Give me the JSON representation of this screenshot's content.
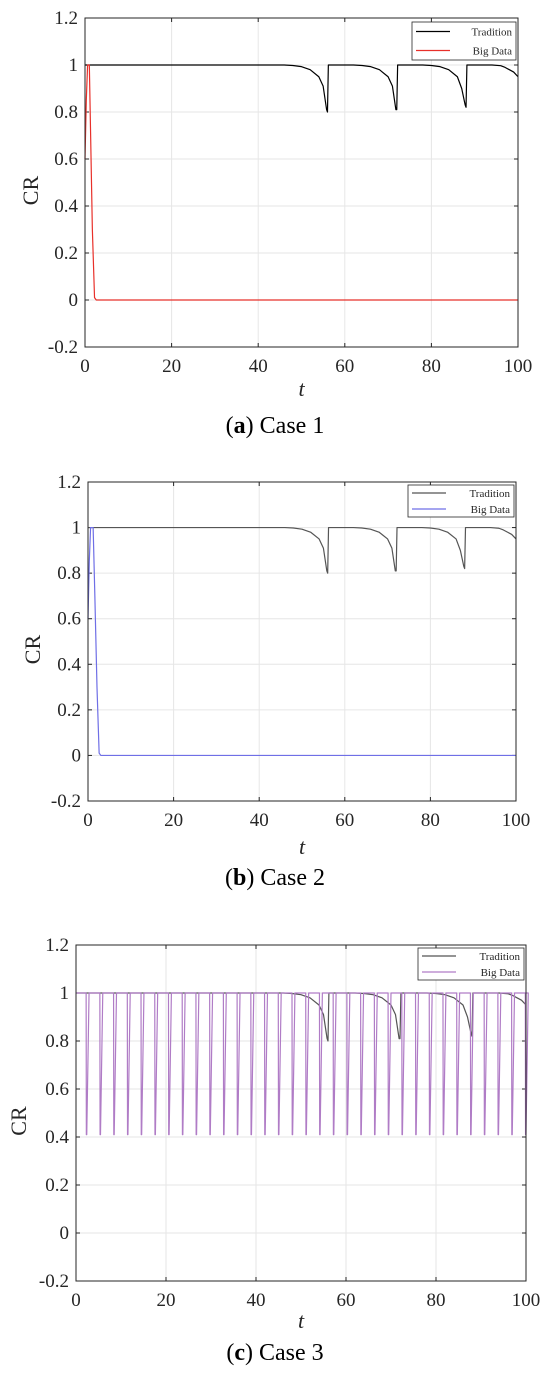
{
  "chart_data": [
    {
      "id": "a",
      "type": "line",
      "caption": {
        "letter": "a",
        "text": "Case 1"
      },
      "xlabel": "t",
      "ylabel": "CR",
      "xlim": [
        0,
        100
      ],
      "ylim": [
        -0.2,
        1.2
      ],
      "xticks": [
        "0",
        "20",
        "40",
        "60",
        "80",
        "100"
      ],
      "yticks": [
        "-0.2",
        "0",
        "0.2",
        "0.4",
        "0.6",
        "0.8",
        "1",
        "1.2"
      ],
      "grid": true,
      "legend_position": "top-right",
      "series": [
        {
          "name": "Tradition",
          "color": "#000000",
          "points": [
            [
              0,
              1
            ],
            [
              46,
              1
            ],
            [
              48,
              0.998
            ],
            [
              50,
              0.993
            ],
            [
              52,
              0.98
            ],
            [
              54,
              0.95
            ],
            [
              55,
              0.91
            ],
            [
              55.8,
              0.81
            ],
            [
              56,
              0.8
            ],
            [
              56.2,
              1
            ],
            [
              62,
              1
            ],
            [
              64,
              0.998
            ],
            [
              66,
              0.993
            ],
            [
              68,
              0.98
            ],
            [
              70,
              0.95
            ],
            [
              71,
              0.91
            ],
            [
              71.8,
              0.81
            ],
            [
              72,
              0.81
            ],
            [
              72.2,
              1
            ],
            [
              78,
              1
            ],
            [
              80,
              0.998
            ],
            [
              82,
              0.993
            ],
            [
              84,
              0.98
            ],
            [
              86,
              0.95
            ],
            [
              87,
              0.9
            ],
            [
              87.8,
              0.83
            ],
            [
              88,
              0.82
            ],
            [
              88.2,
              1
            ],
            [
              94,
              1
            ],
            [
              96,
              0.997
            ],
            [
              97,
              0.99
            ],
            [
              98,
              0.98
            ],
            [
              99,
              0.97
            ],
            [
              100,
              0.95
            ]
          ]
        },
        {
          "name": "Big Data",
          "color": "#e8302a",
          "points": [
            [
              0,
              0.6
            ],
            [
              0.3,
              0.85
            ],
            [
              0.6,
              1
            ],
            [
              1,
              1
            ],
            [
              1.3,
              0.7
            ],
            [
              1.7,
              0.3
            ],
            [
              2.2,
              0.01
            ],
            [
              2.6,
              0
            ],
            [
              100,
              0
            ]
          ]
        }
      ]
    },
    {
      "id": "b",
      "type": "line",
      "caption": {
        "letter": "b",
        "text": "Case 2"
      },
      "xlabel": "t",
      "ylabel": "CR",
      "xlim": [
        0,
        100
      ],
      "ylim": [
        -0.2,
        1.2
      ],
      "xticks": [
        "0",
        "20",
        "40",
        "60",
        "80",
        "100"
      ],
      "yticks": [
        "-0.2",
        "0",
        "0.2",
        "0.4",
        "0.6",
        "0.8",
        "1",
        "1.2"
      ],
      "grid": true,
      "legend_position": "top-right",
      "series": [
        {
          "name": "Tradition",
          "color": "#555555",
          "points": [
            [
              0,
              1
            ],
            [
              46,
              1
            ],
            [
              48,
              0.998
            ],
            [
              50,
              0.993
            ],
            [
              52,
              0.98
            ],
            [
              54,
              0.95
            ],
            [
              55,
              0.91
            ],
            [
              55.8,
              0.81
            ],
            [
              56,
              0.8
            ],
            [
              56.2,
              1
            ],
            [
              62,
              1
            ],
            [
              64,
              0.998
            ],
            [
              66,
              0.993
            ],
            [
              68,
              0.98
            ],
            [
              70,
              0.95
            ],
            [
              71,
              0.91
            ],
            [
              71.8,
              0.81
            ],
            [
              72,
              0.81
            ],
            [
              72.2,
              1
            ],
            [
              78,
              1
            ],
            [
              80,
              0.998
            ],
            [
              82,
              0.993
            ],
            [
              84,
              0.98
            ],
            [
              86,
              0.95
            ],
            [
              87,
              0.9
            ],
            [
              87.8,
              0.83
            ],
            [
              88,
              0.82
            ],
            [
              88.2,
              1
            ],
            [
              94,
              1
            ],
            [
              96,
              0.997
            ],
            [
              97,
              0.99
            ],
            [
              98,
              0.98
            ],
            [
              99,
              0.97
            ],
            [
              100,
              0.95
            ]
          ]
        },
        {
          "name": "Big Data",
          "color": "#6f6fe6",
          "points": [
            [
              0,
              0.6
            ],
            [
              0.3,
              0.85
            ],
            [
              0.6,
              1
            ],
            [
              1.2,
              1
            ],
            [
              1.6,
              0.7
            ],
            [
              2.1,
              0.3
            ],
            [
              2.6,
              0.01
            ],
            [
              3,
              0
            ],
            [
              100,
              0
            ]
          ]
        }
      ]
    },
    {
      "id": "c",
      "type": "line",
      "caption": {
        "letter": "c",
        "text": "Case 3"
      },
      "xlabel": "t",
      "ylabel": "CR",
      "xlim": [
        0,
        100
      ],
      "ylim": [
        -0.2,
        1.2
      ],
      "xticks": [
        "0",
        "20",
        "40",
        "60",
        "80",
        "100"
      ],
      "yticks": [
        "-0.2",
        "0",
        "0.2",
        "0.4",
        "0.6",
        "0.8",
        "1",
        "1.2"
      ],
      "grid": true,
      "legend_position": "top-right",
      "series": [
        {
          "name": "Tradition",
          "color": "#555555",
          "points": [
            [
              0,
              1
            ],
            [
              46,
              1
            ],
            [
              48,
              0.998
            ],
            [
              50,
              0.993
            ],
            [
              52,
              0.98
            ],
            [
              54,
              0.95
            ],
            [
              55,
              0.91
            ],
            [
              55.8,
              0.81
            ],
            [
              56,
              0.8
            ],
            [
              56.2,
              1
            ],
            [
              62,
              1
            ],
            [
              64,
              0.998
            ],
            [
              66,
              0.993
            ],
            [
              68,
              0.98
            ],
            [
              70,
              0.95
            ],
            [
              71,
              0.91
            ],
            [
              71.8,
              0.81
            ],
            [
              72,
              0.81
            ],
            [
              72.2,
              1
            ],
            [
              78,
              1
            ],
            [
              80,
              0.998
            ],
            [
              82,
              0.993
            ],
            [
              84,
              0.98
            ],
            [
              86,
              0.95
            ],
            [
              87,
              0.9
            ],
            [
              87.8,
              0.83
            ],
            [
              88,
              0.82
            ],
            [
              88.2,
              1
            ],
            [
              94,
              1
            ],
            [
              96,
              0.997
            ],
            [
              97,
              0.99
            ],
            [
              98,
              0.98
            ],
            [
              99,
              0.97
            ],
            [
              100,
              0.95
            ]
          ]
        },
        {
          "name": "Big Data",
          "color": "#b07cc6",
          "oscillation": {
            "high": 1,
            "low": 0.41,
            "first_dip": 2.3,
            "period": 3.05,
            "end": 100,
            "dip_width": 0.6
          }
        }
      ]
    }
  ]
}
